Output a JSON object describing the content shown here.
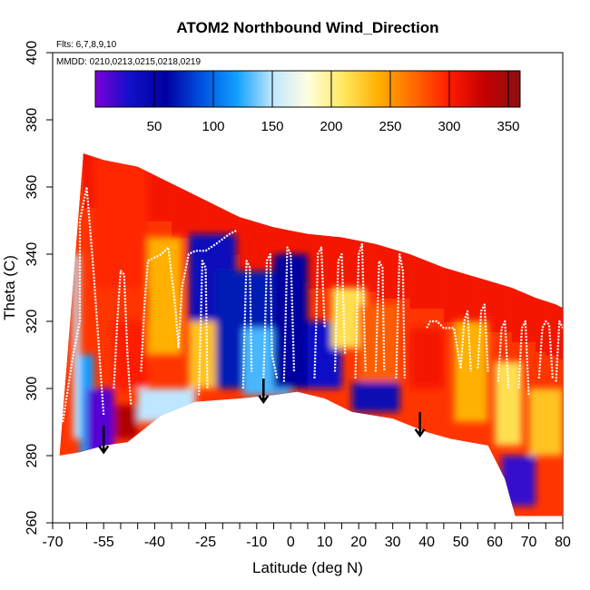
{
  "chart_data": {
    "type": "heatmap",
    "title": "ATOM2 Northbound Wind_Direction",
    "subtitle_flights": "Flts: 6,7,8,9,10",
    "subtitle_dates": "MMDD: 0210,0213,0215,0218,0219",
    "xlabel": "Latitude (deg N)",
    "ylabel": "Theta (C)",
    "xlim": [
      -70,
      80
    ],
    "ylim": [
      260,
      400
    ],
    "x_ticks": [
      -70,
      -55,
      -40,
      -25,
      -10,
      0,
      10,
      20,
      30,
      40,
      50,
      60,
      70,
      80
    ],
    "x_tick_labels": [
      "-70",
      "-55",
      "-40",
      "-25",
      "-10",
      "0",
      "10",
      "20",
      "30",
      "40",
      "50",
      "60",
      "70",
      "80"
    ],
    "x_minor_ticks": [
      -65,
      -60,
      -50,
      -45,
      -35,
      -30,
      -20,
      -15,
      -5,
      5,
      15,
      25,
      35,
      45,
      55,
      65,
      75
    ],
    "y_ticks": [
      260,
      280,
      300,
      320,
      340,
      360,
      380,
      400
    ],
    "y_tick_labels": [
      "260",
      "280",
      "300",
      "320",
      "340",
      "360",
      "380",
      "400"
    ],
    "colorbar": {
      "range": [
        0,
        360
      ],
      "ticks": [
        50,
        100,
        150,
        200,
        250,
        300,
        350
      ],
      "tick_labels": [
        "50",
        "100",
        "150",
        "200",
        "250",
        "300",
        "350"
      ],
      "colors": [
        "#7b00d8",
        "#1010c8",
        "#0000a0",
        "#0050e0",
        "#10a0ff",
        "#bfe6ff",
        "#ffffe0",
        "#ffe860",
        "#ffb000",
        "#ff6a00",
        "#ff1a00",
        "#c40000",
        "#8a1010"
      ]
    },
    "grid": false,
    "coverage": {
      "top": [
        [
          -61,
          370
        ],
        [
          -55,
          368
        ],
        [
          -45,
          366
        ],
        [
          -35,
          361
        ],
        [
          -25,
          356
        ],
        [
          -15,
          351
        ],
        [
          -5,
          348
        ],
        [
          5,
          346
        ],
        [
          15,
          345
        ],
        [
          25,
          343
        ],
        [
          35,
          340
        ],
        [
          45,
          336
        ],
        [
          55,
          333
        ],
        [
          65,
          330
        ],
        [
          72,
          327
        ],
        [
          75,
          326
        ],
        [
          78,
          325
        ],
        [
          80,
          324
        ]
      ],
      "bottom": [
        [
          -68,
          280
        ],
        [
          -62,
          281
        ],
        [
          -55,
          283
        ],
        [
          -48,
          284
        ],
        [
          -38,
          292
        ],
        [
          -28,
          296
        ],
        [
          -15,
          297
        ],
        [
          -5,
          298
        ],
        [
          2,
          299
        ],
        [
          10,
          297
        ],
        [
          18,
          293
        ],
        [
          30,
          291
        ],
        [
          40,
          287
        ],
        [
          47,
          285
        ],
        [
          58,
          283
        ],
        [
          63,
          273
        ],
        [
          66,
          262
        ],
        [
          72,
          262
        ],
        [
          76,
          262
        ],
        [
          80,
          262
        ]
      ]
    },
    "color_regions": [
      {
        "x0": -62,
        "x1": -58,
        "y0": 278,
        "y1": 310,
        "value": 120
      },
      {
        "x0": -60,
        "x1": -45,
        "y0": 285,
        "y1": 295,
        "value": 340
      },
      {
        "x0": -60,
        "x1": -52,
        "y0": 280,
        "y1": 300,
        "value": 10
      },
      {
        "x0": -58,
        "x1": -42,
        "y0": 330,
        "y1": 372,
        "value": 295
      },
      {
        "x0": -52,
        "x1": -42,
        "y0": 300,
        "y1": 320,
        "value": 300
      },
      {
        "x0": -42,
        "x1": -32,
        "y0": 310,
        "y1": 345,
        "value": 240
      },
      {
        "x0": -45,
        "x1": -28,
        "y0": 290,
        "y1": 300,
        "value": 150
      },
      {
        "x0": -30,
        "x1": -18,
        "y0": 300,
        "y1": 320,
        "value": 230
      },
      {
        "x0": -30,
        "x1": -16,
        "y0": 320,
        "y1": 346,
        "value": 40
      },
      {
        "x0": -22,
        "x1": -5,
        "y0": 300,
        "y1": 335,
        "value": 70
      },
      {
        "x0": -14,
        "x1": 0,
        "y0": 298,
        "y1": 318,
        "value": 130
      },
      {
        "x0": -5,
        "x1": 5,
        "y0": 300,
        "y1": 340,
        "value": 60
      },
      {
        "x0": 5,
        "x1": 15,
        "y0": 300,
        "y1": 320,
        "value": 30
      },
      {
        "x0": 12,
        "x1": 22,
        "y0": 312,
        "y1": 330,
        "value": 215
      },
      {
        "x0": 18,
        "x1": 32,
        "y0": 293,
        "y1": 302,
        "value": 45
      },
      {
        "x0": 20,
        "x1": 32,
        "y0": 302,
        "y1": 325,
        "value": 275
      },
      {
        "x0": 35,
        "x1": 45,
        "y0": 300,
        "y1": 318,
        "value": 305
      },
      {
        "x0": 48,
        "x1": 58,
        "y0": 290,
        "y1": 320,
        "value": 240
      },
      {
        "x0": 60,
        "x1": 68,
        "y0": 283,
        "y1": 308,
        "value": 215
      },
      {
        "x0": 62,
        "x1": 72,
        "y0": 265,
        "y1": 280,
        "value": 20
      },
      {
        "x0": 70,
        "x1": 80,
        "y0": 280,
        "y1": 300,
        "value": 230
      },
      {
        "x0": -64,
        "x1": -62,
        "y0": 285,
        "y1": 340,
        "value": 150
      }
    ],
    "tropopause_lines": [
      {
        "x": [
          -67,
          -64,
          -62,
          -62,
          -60,
          -58,
          -55
        ],
        "y": [
          290,
          310,
          320,
          350,
          360,
          335,
          292
        ]
      },
      {
        "x": [
          -52,
          -51,
          -50,
          -49,
          -48,
          -47
        ],
        "y": [
          300,
          320,
          335,
          334,
          310,
          295
        ]
      },
      {
        "x": [
          -44,
          -43,
          -42,
          -40,
          -38,
          -36,
          -34,
          -33,
          -32,
          -30,
          -28,
          -25,
          -22,
          -18,
          -16
        ],
        "y": [
          305,
          325,
          338,
          339,
          340,
          342,
          325,
          312,
          330,
          340,
          341,
          341,
          343,
          346,
          347
        ]
      },
      {
        "x": [
          -27,
          -26.5,
          -26,
          -25,
          -24.5
        ],
        "y": [
          298,
          318,
          338,
          336,
          300
        ]
      },
      {
        "x": [
          -14,
          -13.5,
          -13,
          -12,
          -11.5
        ],
        "y": [
          300,
          320,
          338,
          336,
          305
        ]
      },
      {
        "x": [
          -8,
          -7.5,
          -7,
          -6,
          -5.5,
          -4
        ],
        "y": [
          303,
          320,
          338,
          340,
          310,
          303
        ]
      },
      {
        "x": [
          -2,
          -1.5,
          -1,
          0,
          1
        ],
        "y": [
          302,
          320,
          342,
          340,
          305
        ]
      },
      {
        "x": [
          7,
          7.5,
          8,
          9,
          10
        ],
        "y": [
          303,
          320,
          340,
          342,
          318
        ]
      },
      {
        "x": [
          13,
          13.5,
          14,
          15,
          16
        ],
        "y": [
          305,
          322,
          338,
          340,
          310
        ]
      },
      {
        "x": [
          19,
          19.5,
          20,
          21,
          22
        ],
        "y": [
          303,
          322,
          340,
          343,
          305
        ]
      },
      {
        "x": [
          25,
          25.5,
          26,
          27,
          27.5
        ],
        "y": [
          305,
          322,
          338,
          336,
          305
        ]
      },
      {
        "x": [
          31,
          31.5,
          32,
          33,
          33.5
        ],
        "y": [
          303,
          322,
          340,
          335,
          303
        ]
      },
      {
        "x": [
          40,
          41,
          43,
          45,
          48,
          50
        ],
        "y": [
          318,
          320,
          320,
          318,
          318,
          306
        ]
      },
      {
        "x": [
          50,
          51,
          52,
          53
        ],
        "y": [
          306,
          320,
          323,
          305
        ]
      },
      {
        "x": [
          55,
          56,
          57,
          58
        ],
        "y": [
          306,
          323,
          325,
          305
        ]
      },
      {
        "x": [
          61,
          62,
          63,
          64
        ],
        "y": [
          302,
          318,
          320,
          300
        ]
      },
      {
        "x": [
          67,
          68,
          69,
          70
        ],
        "y": [
          300,
          318,
          320,
          298
        ]
      },
      {
        "x": [
          73,
          74,
          75,
          76,
          77
        ],
        "y": [
          303,
          318,
          320,
          319,
          303
        ]
      },
      {
        "x": [
          78,
          79,
          80
        ],
        "y": [
          302,
          320,
          318
        ]
      }
    ],
    "arrows": [
      {
        "x": -55,
        "y_start": 289,
        "y_end": 281
      },
      {
        "x": -8,
        "y_start": 303,
        "y_end": 296
      },
      {
        "x": 38,
        "y_start": 293,
        "y_end": 286
      }
    ]
  }
}
